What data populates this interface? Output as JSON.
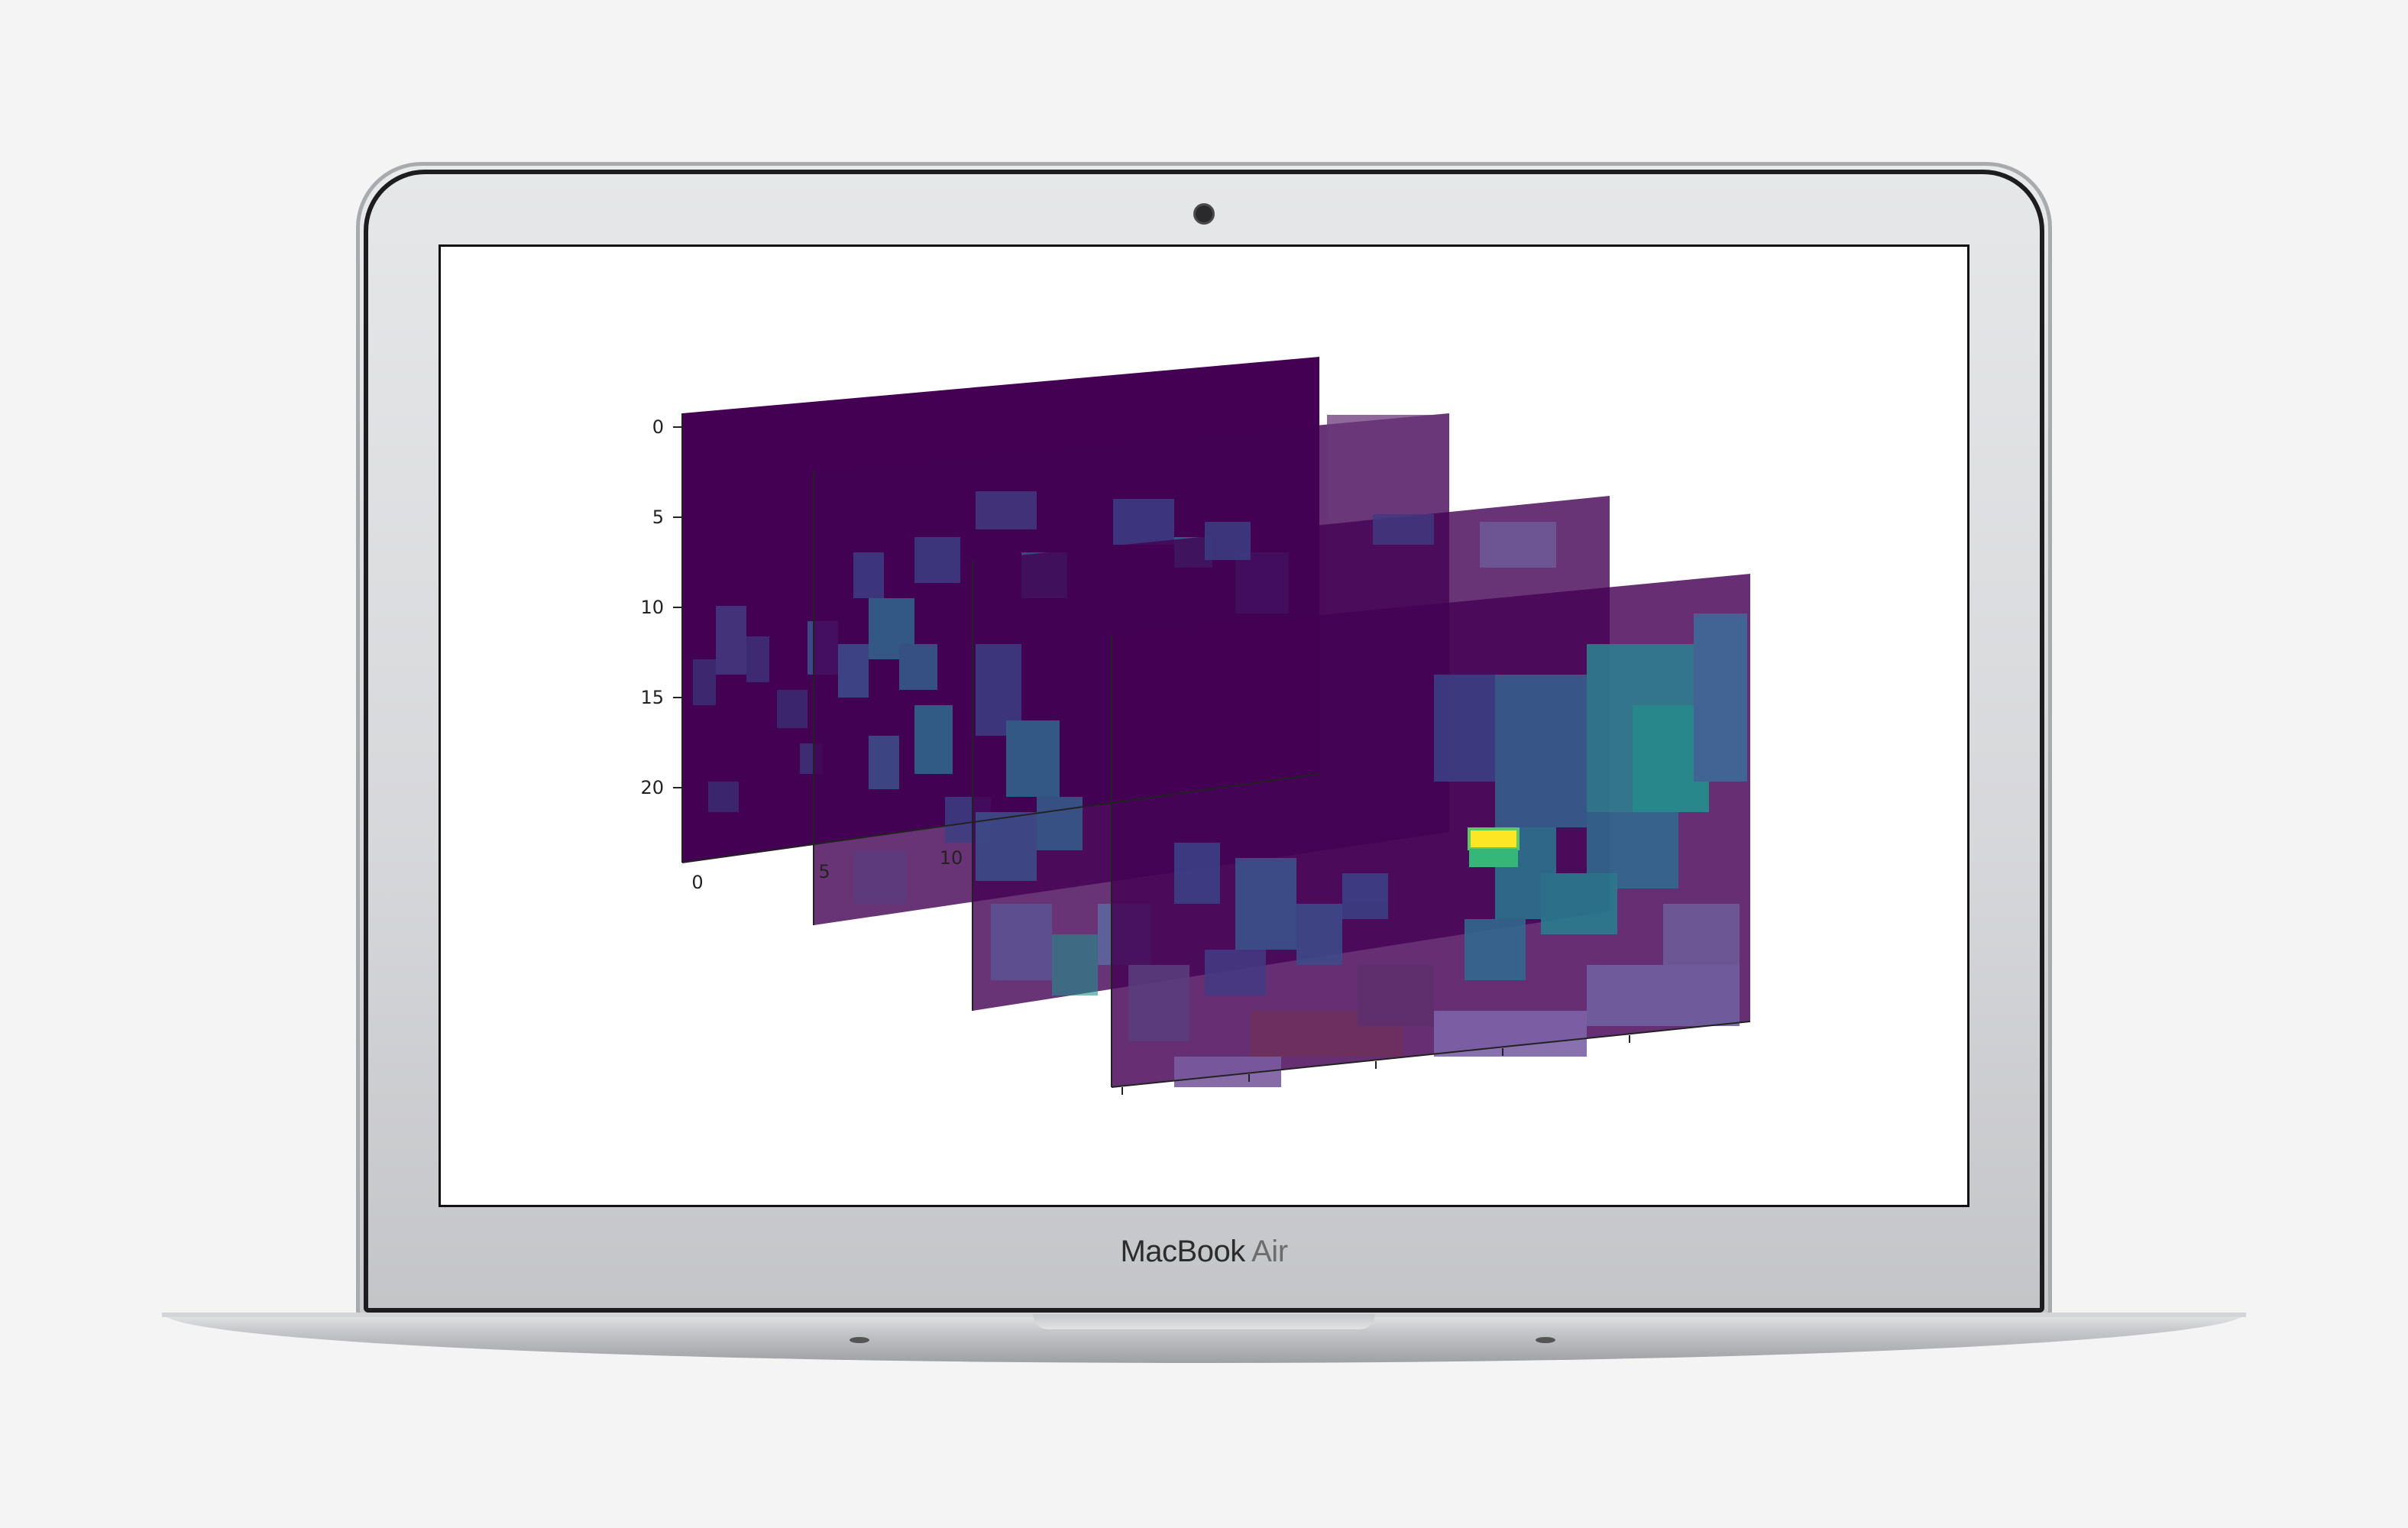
{
  "device": {
    "brand": "MacBook",
    "model": "Air"
  },
  "figure": {
    "y_ticks": [
      "0",
      "5",
      "10",
      "15",
      "20"
    ],
    "x_ticks_front": [
      "0"
    ],
    "x_ticks_second": [
      "5",
      "10"
    ],
    "colormap": "viridis",
    "layer_count": 4,
    "colors": {
      "low": "#440154",
      "mid": "#3b528b",
      "teal": "#21918c",
      "high": "#fde725",
      "accent": "#5ec962"
    }
  }
}
